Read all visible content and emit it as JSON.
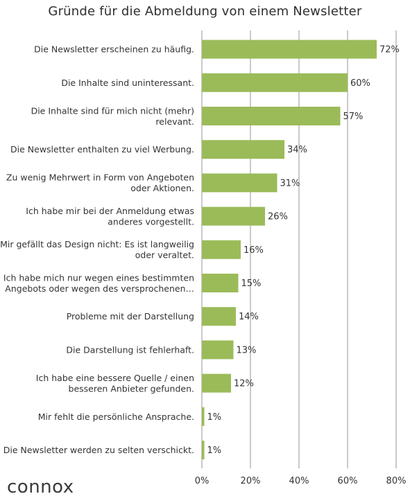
{
  "brand": {
    "logo_text": "connox"
  },
  "chart_data": {
    "type": "bar",
    "orientation": "horizontal",
    "title": "Gründe für die Abmeldung von einem Newsletter",
    "categories": [
      [
        "Die Newsletter erscheinen zu häufig."
      ],
      [
        "Die Inhalte sind uninteressant."
      ],
      [
        "Die Inhalte sind für mich nicht (mehr)",
        "relevant."
      ],
      [
        "Die Newsletter enthalten zu viel Werbung."
      ],
      [
        "Zu wenig Mehrwert in Form von Angeboten",
        "oder Aktionen."
      ],
      [
        "Ich habe mir bei der Anmeldung etwas",
        "anderes vorgestellt."
      ],
      [
        "Mir gefällt das Design nicht: Es ist langweilig",
        "oder veraltet."
      ],
      [
        "Ich habe mich nur wegen eines bestimmten",
        "Angebots oder wegen des versprochenen…"
      ],
      [
        "Probleme mit der Darstellung"
      ],
      [
        "Die Darstellung ist fehlerhaft."
      ],
      [
        "Ich habe eine bessere Quelle / einen",
        "besseren Anbieter gefunden."
      ],
      [
        "Mir fehlt die persönliche Ansprache."
      ],
      [
        "Die Newsletter werden zu selten verschickt."
      ]
    ],
    "values": [
      72,
      60,
      57,
      34,
      31,
      26,
      16,
      15,
      14,
      13,
      12,
      1,
      1
    ],
    "value_labels": [
      "72%",
      "60%",
      "57%",
      "34%",
      "31%",
      "26%",
      "16%",
      "15%",
      "14%",
      "13%",
      "12%",
      "1%",
      "1%"
    ],
    "xlim": [
      0,
      80
    ],
    "x_ticks": [
      0,
      20,
      40,
      60,
      80
    ],
    "x_tick_labels": [
      "0%",
      "20%",
      "40%",
      "60%",
      "80%"
    ],
    "grid": true,
    "legend": "none",
    "colors": {
      "bar": "#9bbb59",
      "grid": "#a6a6a6",
      "text": "#333333"
    }
  }
}
